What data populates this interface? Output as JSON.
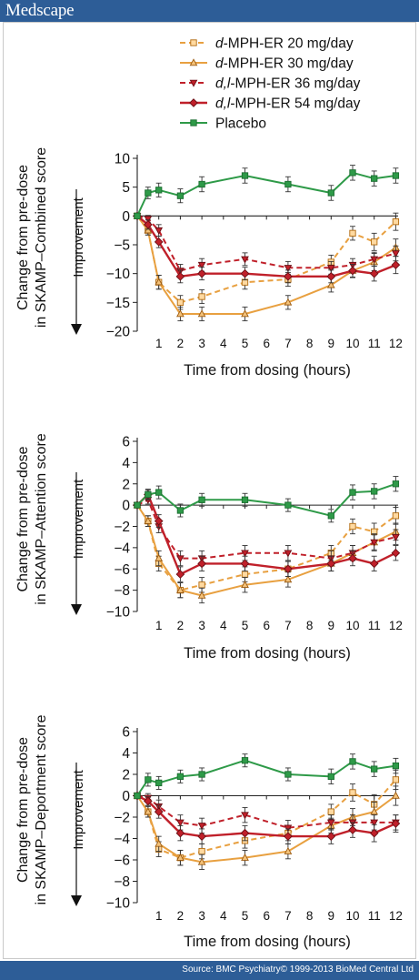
{
  "header": {
    "brand": "Medscape"
  },
  "footer": {
    "source": "Source: BMC Psychiatry© 1999-2013 BioMed Central Ltd"
  },
  "legend": {
    "items": [
      {
        "key": "dmph20",
        "label": "d-MPH-ER 20 mg/day",
        "prefix": "d",
        "rest": "-MPH-ER 20 mg/day"
      },
      {
        "key": "dmph30",
        "label": "d-MPH-ER 30 mg/day",
        "prefix": "d",
        "rest": "-MPH-ER 30 mg/day"
      },
      {
        "key": "dlmph36",
        "label": "d,l-MPH-ER 36 mg/day",
        "prefix": "d,l",
        "rest": "-MPH-ER 36 mg/day"
      },
      {
        "key": "dlmph54",
        "label": "d,l-MPH-ER 54 mg/day",
        "prefix": "d,l",
        "rest": "-MPH-ER 54 mg/day"
      },
      {
        "key": "placebo",
        "label": "Placebo",
        "prefix": "",
        "rest": "Placebo"
      }
    ]
  },
  "colors": {
    "dmph20": "#e8a040",
    "dmph30": "#e8a040",
    "dlmph36": "#c0202a",
    "dlmph54": "#c0202a",
    "placebo": "#2e9a48",
    "axis": "#222222"
  },
  "chart_data": [
    {
      "type": "line",
      "ylabel": "Change from pre-dose in SKAMP–Combined score",
      "improvement_label": "Improvement",
      "xlabel": "Time from dosing (hours)",
      "x": [
        0,
        0.5,
        1,
        2,
        3,
        5,
        7,
        9,
        10,
        11,
        12
      ],
      "x_ticks": [
        1,
        2,
        3,
        4,
        5,
        6,
        7,
        8,
        9,
        10,
        11,
        12
      ],
      "ylim": [
        -20,
        10
      ],
      "y_ticks": [
        10,
        5,
        0,
        -5,
        -10,
        -15,
        -20
      ],
      "series": [
        {
          "name": "d-MPH-ER 20 mg/day",
          "key": "dmph20",
          "values": [
            0,
            -2.5,
            -11.5,
            -15,
            -14,
            -11.5,
            -11,
            -8,
            -3,
            -4.5,
            -1
          ],
          "errors": [
            0,
            0.8,
            1.2,
            1.2,
            1.2,
            1.2,
            1.2,
            1.2,
            1.2,
            1.5,
            1.5
          ]
        },
        {
          "name": "d-MPH-ER 30 mg/day",
          "key": "dmph30",
          "values": [
            0,
            -2.5,
            -11.5,
            -17,
            -17,
            -17,
            -15,
            -12,
            -9.5,
            -8,
            -5.5
          ],
          "errors": [
            0,
            0.8,
            1.2,
            1.2,
            1.2,
            1.2,
            1.2,
            1.2,
            1.2,
            1.5,
            1.5
          ]
        },
        {
          "name": "d,l-MPH-ER 36 mg/day",
          "key": "dlmph36",
          "values": [
            0,
            -0.5,
            -2.5,
            -9.5,
            -8.5,
            -7.5,
            -9,
            -9,
            -8.5,
            -7.5,
            -6.5
          ],
          "errors": [
            0,
            0.6,
            1.0,
            1.1,
            1.1,
            1.1,
            1.1,
            1.1,
            1.1,
            1.2,
            1.3
          ]
        },
        {
          "name": "d,l-MPH-ER 54 mg/day",
          "key": "dlmph54",
          "values": [
            0,
            -1.5,
            -4.5,
            -10.5,
            -10,
            -10,
            -10.5,
            -10.5,
            -9.5,
            -10,
            -8.5
          ],
          "errors": [
            0,
            0.8,
            1.0,
            1.1,
            1.1,
            1.1,
            1.1,
            1.1,
            1.1,
            1.3,
            1.5
          ]
        },
        {
          "name": "Placebo",
          "key": "placebo",
          "values": [
            0,
            4,
            4.5,
            3.5,
            5.5,
            7,
            5.5,
            4,
            7.5,
            6.5,
            7
          ],
          "errors": [
            0,
            1.0,
            1.2,
            1.2,
            1.3,
            1.3,
            1.3,
            1.3,
            1.3,
            1.3,
            1.3
          ]
        }
      ]
    },
    {
      "type": "line",
      "ylabel": "Change from pre-dose in SKAMP–Attention score",
      "improvement_label": "Improvement",
      "xlabel": "Time from dosing (hours)",
      "x": [
        0,
        0.5,
        1,
        2,
        3,
        5,
        7,
        9,
        10,
        11,
        12
      ],
      "x_ticks": [
        1,
        2,
        3,
        4,
        5,
        6,
        7,
        8,
        9,
        10,
        11,
        12
      ],
      "ylim": [
        -10,
        6
      ],
      "y_ticks": [
        6,
        4,
        2,
        0,
        -2,
        -4,
        -6,
        -8,
        -10
      ],
      "series": [
        {
          "name": "d-MPH-ER 20 mg/day",
          "key": "dmph20",
          "values": [
            0,
            -1.5,
            -5.5,
            -8,
            -7.5,
            -6.5,
            -6,
            -4.5,
            -2,
            -2.5,
            -1
          ],
          "errors": [
            0,
            0.5,
            0.7,
            0.7,
            0.7,
            0.7,
            0.7,
            0.7,
            0.7,
            0.8,
            0.8
          ]
        },
        {
          "name": "d-MPH-ER 30 mg/day",
          "key": "dmph30",
          "values": [
            0,
            -1.5,
            -5,
            -8,
            -8.5,
            -7.5,
            -7,
            -5.5,
            -4.5,
            -3.5,
            -2.5
          ],
          "errors": [
            0,
            0.5,
            0.7,
            0.7,
            0.7,
            0.7,
            0.7,
            0.7,
            0.7,
            0.8,
            0.8
          ]
        },
        {
          "name": "d,l-MPH-ER 36 mg/day",
          "key": "dlmph36",
          "values": [
            0,
            0.5,
            -2,
            -5,
            -5,
            -4.5,
            -4.5,
            -5,
            -4.5,
            -3.5,
            -3
          ],
          "errors": [
            0,
            0.4,
            0.6,
            0.7,
            0.7,
            0.7,
            0.7,
            0.7,
            0.7,
            0.7,
            0.7
          ]
        },
        {
          "name": "d,l-MPH-ER 54 mg/day",
          "key": "dlmph54",
          "values": [
            0,
            1,
            -1.5,
            -6.5,
            -5.5,
            -5.5,
            -6,
            -5.5,
            -5,
            -5.5,
            -4.5
          ],
          "errors": [
            0,
            0.4,
            0.6,
            0.7,
            0.7,
            0.7,
            0.7,
            0.7,
            0.7,
            0.7,
            0.7
          ]
        },
        {
          "name": "Placebo",
          "key": "placebo",
          "values": [
            0,
            1,
            1.2,
            -0.5,
            0.5,
            0.5,
            0,
            -1,
            1.2,
            1.3,
            2
          ],
          "errors": [
            0,
            0.5,
            0.6,
            0.6,
            0.6,
            0.6,
            0.6,
            0.6,
            0.7,
            0.7,
            0.7
          ]
        }
      ]
    },
    {
      "type": "line",
      "ylabel": "Change from pre-dose in SKAMP–Deportment score",
      "improvement_label": "Improvement",
      "xlabel": "Time from dosing (hours)",
      "x": [
        0,
        0.5,
        1,
        2,
        3,
        5,
        7,
        9,
        10,
        11,
        12
      ],
      "x_ticks": [
        1,
        2,
        3,
        4,
        5,
        6,
        7,
        8,
        9,
        10,
        11,
        12
      ],
      "ylim": [
        -10,
        6
      ],
      "y_ticks": [
        6,
        4,
        2,
        0,
        -2,
        -4,
        -6,
        -8,
        -10
      ],
      "series": [
        {
          "name": "d-MPH-ER 20 mg/day",
          "key": "dmph20",
          "values": [
            0,
            -1.5,
            -5,
            -5.8,
            -5.2,
            -4.2,
            -3.5,
            -1.5,
            0.3,
            -0.8,
            1.5
          ],
          "errors": [
            0,
            0.5,
            0.7,
            0.7,
            0.7,
            0.7,
            0.7,
            0.7,
            0.8,
            0.9,
            0.9
          ]
        },
        {
          "name": "d-MPH-ER 30 mg/day",
          "key": "dmph30",
          "values": [
            0,
            -1.5,
            -4.5,
            -5.8,
            -6.2,
            -5.8,
            -5.2,
            -2.8,
            -2,
            -1.5,
            0
          ],
          "errors": [
            0,
            0.5,
            0.7,
            0.7,
            0.7,
            0.7,
            0.7,
            0.7,
            0.8,
            0.9,
            0.9
          ]
        },
        {
          "name": "d,l-MPH-ER 36 mg/day",
          "key": "dlmph36",
          "values": [
            0,
            -0.2,
            -1,
            -2.5,
            -2.8,
            -1.8,
            -3,
            -2.5,
            -2.5,
            -2.5,
            -2.5
          ],
          "errors": [
            0,
            0.4,
            0.6,
            0.7,
            0.7,
            0.7,
            0.7,
            0.7,
            0.7,
            0.7,
            0.7
          ]
        },
        {
          "name": "d,l-MPH-ER 54 mg/day",
          "key": "dlmph54",
          "values": [
            0,
            -0.5,
            -1.5,
            -3.5,
            -3.8,
            -3.5,
            -3.8,
            -3.8,
            -3.2,
            -3.5,
            -2.6
          ],
          "errors": [
            0,
            0.4,
            0.6,
            0.7,
            0.7,
            0.7,
            0.7,
            0.7,
            0.7,
            0.8,
            0.8
          ]
        },
        {
          "name": "Placebo",
          "key": "placebo",
          "values": [
            0,
            1.5,
            1.2,
            1.8,
            2,
            3.3,
            2,
            1.8,
            3.2,
            2.5,
            2.8
          ],
          "errors": [
            0,
            0.6,
            0.6,
            0.6,
            0.6,
            0.6,
            0.6,
            0.7,
            0.7,
            0.7,
            0.7
          ]
        }
      ]
    }
  ]
}
